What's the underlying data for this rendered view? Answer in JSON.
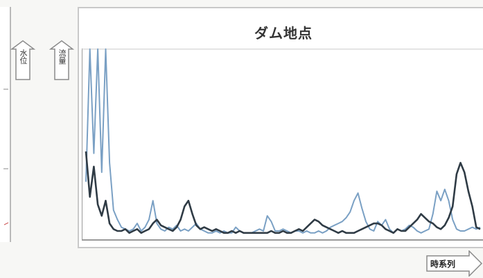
{
  "title": "ダム地点",
  "axis_tags": {
    "water_level": "水位",
    "flow": "流量"
  },
  "x_axis_label": "時系列",
  "colors": {
    "light_series": "#7aa0c4",
    "dark_series": "#2f3b45",
    "frame": "#9a9a9a"
  },
  "chart_data": {
    "type": "line",
    "title": "ダム地点",
    "xlabel": "時系列",
    "ylabel": "",
    "xlim": [
      0,
      100
    ],
    "ylim": [
      0,
      100
    ],
    "grid": false,
    "x": [
      0,
      1,
      2,
      3,
      4,
      5,
      6,
      7,
      8,
      9,
      10,
      11,
      12,
      13,
      14,
      15,
      16,
      17,
      18,
      19,
      20,
      21,
      22,
      23,
      24,
      25,
      26,
      27,
      28,
      29,
      30,
      31,
      32,
      33,
      34,
      35,
      36,
      37,
      38,
      39,
      40,
      41,
      42,
      43,
      44,
      45,
      46,
      47,
      48,
      49,
      50,
      51,
      52,
      53,
      54,
      55,
      56,
      57,
      58,
      59,
      60,
      61,
      62,
      63,
      64,
      65,
      66,
      67,
      68,
      69,
      70,
      71,
      72,
      73,
      74,
      75,
      76,
      77,
      78,
      79,
      80,
      81,
      82,
      83,
      84,
      85,
      86,
      87,
      88,
      89,
      90,
      91,
      92,
      93,
      94,
      95,
      96,
      97,
      98,
      99,
      100
    ],
    "series": [
      {
        "values": [
          30,
          120,
          45,
          100,
          35,
          120,
          40,
          15,
          10,
          6,
          5,
          4,
          5,
          8,
          4,
          6,
          10,
          20,
          8,
          5,
          4,
          6,
          5,
          7,
          4,
          5,
          4,
          6,
          8,
          5,
          4,
          3,
          3,
          4,
          3,
          4,
          3,
          3,
          6,
          4,
          3,
          3,
          3,
          4,
          5,
          4,
          12,
          9,
          4,
          4,
          5,
          4,
          3,
          4,
          4,
          3,
          4,
          3,
          3,
          4,
          3,
          4,
          6,
          7,
          8,
          9,
          11,
          14,
          20,
          24,
          16,
          9,
          5,
          4,
          9,
          7,
          10,
          5,
          3,
          5,
          4,
          5,
          7,
          6,
          4,
          3,
          4,
          5,
          13,
          25,
          20,
          26,
          20,
          10,
          5,
          4,
          4,
          5,
          6,
          5,
          6
        ]
      },
      {
        "values": [
          46,
          22,
          38,
          18,
          12,
          20,
          8,
          5,
          4,
          4,
          5,
          3,
          4,
          5,
          3,
          4,
          5,
          8,
          10,
          7,
          6,
          5,
          4,
          6,
          10,
          17,
          20,
          13,
          7,
          5,
          6,
          5,
          4,
          5,
          4,
          3,
          3,
          4,
          3,
          4,
          3,
          3,
          3,
          3,
          3,
          3,
          3,
          4,
          3,
          3,
          4,
          3,
          3,
          4,
          5,
          4,
          6,
          8,
          10,
          9,
          7,
          6,
          5,
          4,
          3,
          4,
          3,
          3,
          3,
          4,
          5,
          6,
          7,
          8,
          8,
          7,
          5,
          4,
          3,
          5,
          4,
          4,
          6,
          8,
          10,
          13,
          11,
          9,
          8,
          6,
          5,
          7,
          11,
          17,
          34,
          40,
          35,
          25,
          17,
          6,
          5
        ]
      }
    ]
  }
}
